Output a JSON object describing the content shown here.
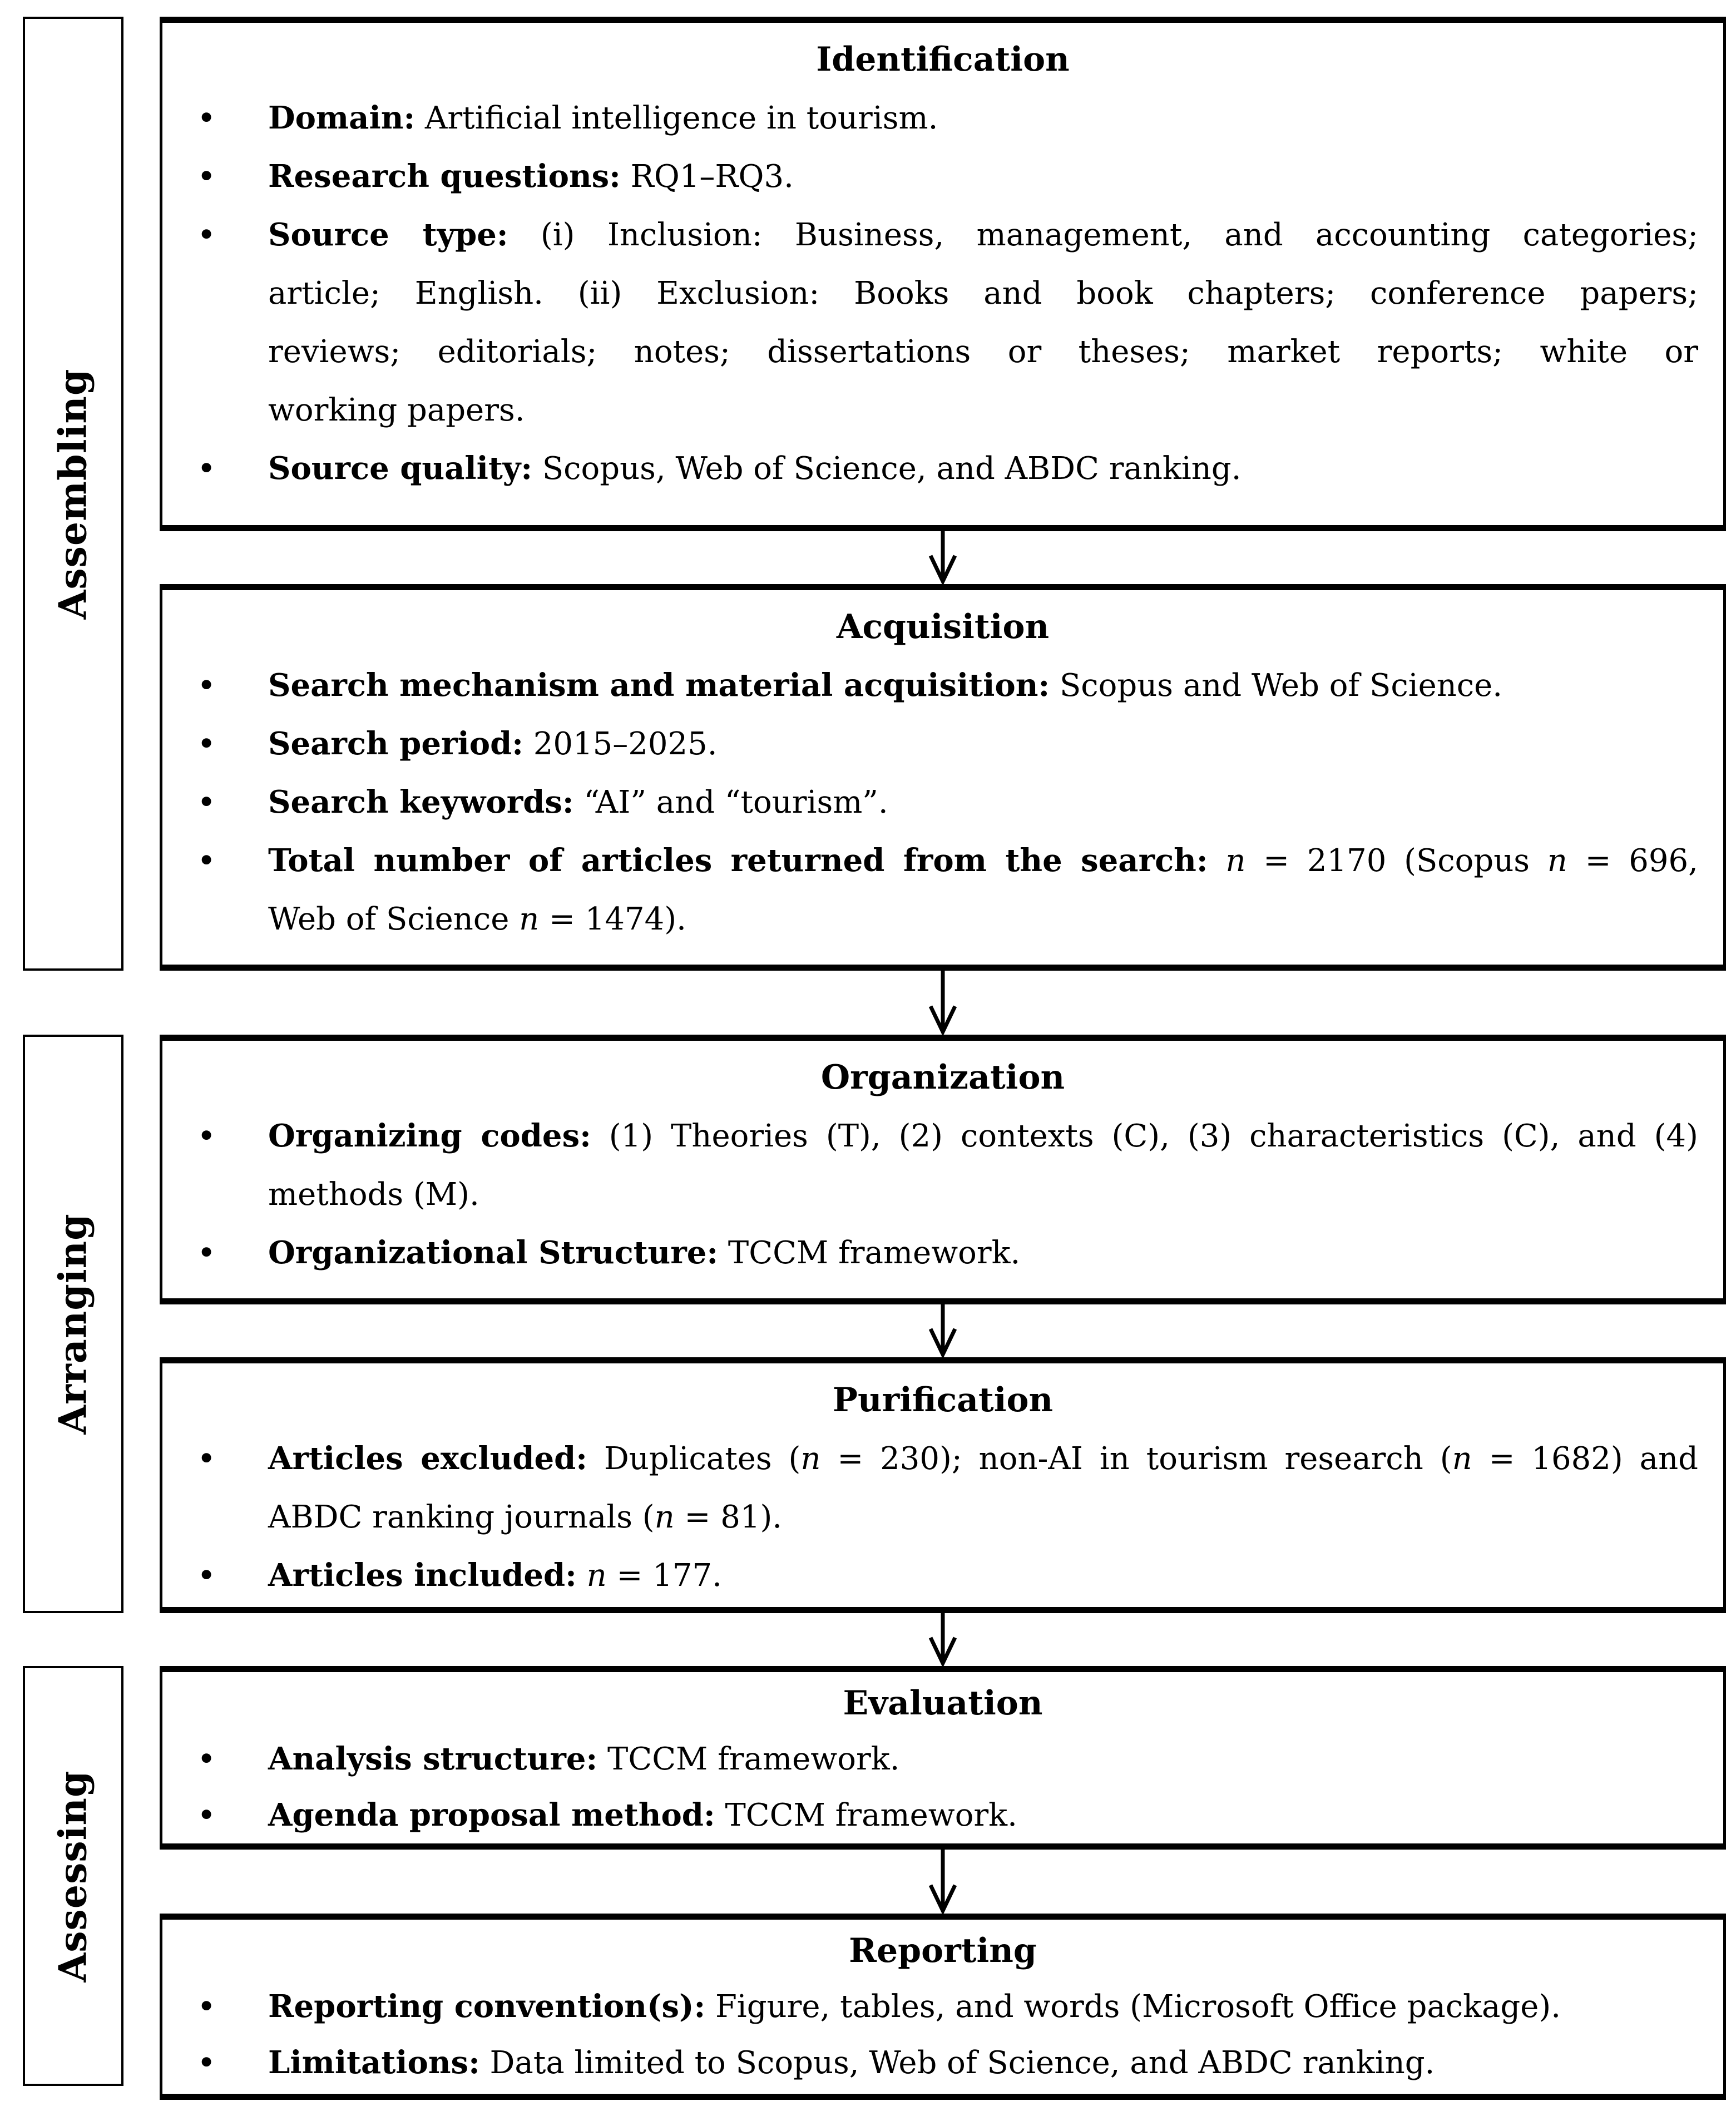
{
  "colors": {
    "ink": "#000000",
    "background": "#ffffff"
  },
  "glyphs": {
    "bullet": "•"
  },
  "stages": {
    "assembling": {
      "label": "Assembling"
    },
    "arranging": {
      "label": "Arranging"
    },
    "assessing": {
      "label": "Assessing"
    }
  },
  "boxes": {
    "identification": {
      "title": "Identification",
      "bullets": [
        {
          "lines": [
            {
              "runs": [
                {
                  "t": "Domain:",
                  "b": 1
                },
                {
                  "t": " Artificial intelligence in tourism."
                }
              ]
            }
          ]
        },
        {
          "lines": [
            {
              "runs": [
                {
                  "t": "Research questions:",
                  "b": 1
                },
                {
                  "t": " RQ1–RQ3."
                }
              ]
            }
          ]
        },
        {
          "lines": [
            {
              "runs": [
                {
                  "t": "Source type:",
                  "b": 1
                },
                {
                  "t": " (i) Inclusion: Business, management, and accounting categories;"
                }
              ]
            },
            {
              "runs": [
                {
                  "t": "article; English. (ii) Exclusion: Books and book chapters; conference papers;"
                }
              ]
            },
            {
              "runs": [
                {
                  "t": "reviews; editorials; notes; dissertations or theses; market reports; white or"
                }
              ]
            },
            {
              "runs": [
                {
                  "t": "working papers."
                }
              ]
            }
          ]
        },
        {
          "lines": [
            {
              "runs": [
                {
                  "t": "Source quality:",
                  "b": 1
                },
                {
                  "t": " Scopus, Web of Science, and ABDC ranking."
                }
              ]
            }
          ]
        }
      ]
    },
    "acquisition": {
      "title": "Acquisition",
      "bullets": [
        {
          "lines": [
            {
              "runs": [
                {
                  "t": "Search mechanism and material acquisition:",
                  "b": 1
                },
                {
                  "t": " Scopus and Web of Science."
                }
              ]
            }
          ]
        },
        {
          "lines": [
            {
              "runs": [
                {
                  "t": "Search period:",
                  "b": 1
                },
                {
                  "t": " 2015–2025."
                }
              ]
            }
          ]
        },
        {
          "lines": [
            {
              "runs": [
                {
                  "t": "Search keywords:",
                  "b": 1
                },
                {
                  "t": " “AI” and “tourism”."
                }
              ]
            }
          ]
        },
        {
          "lines": [
            {
              "runs": [
                {
                  "t": "Total number of articles returned from the search:",
                  "b": 1
                },
                {
                  "t": " "
                },
                {
                  "t": "n",
                  "i": 1
                },
                {
                  "t": " = 2170 (Scopus "
                },
                {
                  "t": "n",
                  "i": 1
                },
                {
                  "t": " = 696,"
                }
              ]
            },
            {
              "runs": [
                {
                  "t": "Web of Science "
                },
                {
                  "t": "n",
                  "i": 1
                },
                {
                  "t": " = 1474)."
                }
              ]
            }
          ]
        }
      ]
    },
    "organization": {
      "title": "Organization",
      "bullets": [
        {
          "lines": [
            {
              "runs": [
                {
                  "t": "Organizing codes:",
                  "b": 1
                },
                {
                  "t": " (1) Theories (T), (2) contexts (C), (3) characteristics (C), and (4)"
                }
              ]
            },
            {
              "runs": [
                {
                  "t": "methods (M)."
                }
              ]
            }
          ]
        },
        {
          "lines": [
            {
              "runs": [
                {
                  "t": "Organizational Structure:",
                  "b": 1
                },
                {
                  "t": " TCCM framework."
                }
              ]
            }
          ]
        }
      ]
    },
    "purification": {
      "title": "Purification",
      "bullets": [
        {
          "lines": [
            {
              "runs": [
                {
                  "t": "Articles excluded:",
                  "b": 1
                },
                {
                  "t": " Duplicates ("
                },
                {
                  "t": "n",
                  "i": 1
                },
                {
                  "t": " = 230); non-AI in tourism research ("
                },
                {
                  "t": "n",
                  "i": 1
                },
                {
                  "t": " = 1682) and"
                }
              ]
            },
            {
              "runs": [
                {
                  "t": "ABDC ranking journals ("
                },
                {
                  "t": "n",
                  "i": 1
                },
                {
                  "t": " = 81)."
                }
              ]
            }
          ]
        },
        {
          "lines": [
            {
              "runs": [
                {
                  "t": "Articles included:",
                  "b": 1
                },
                {
                  "t": " "
                },
                {
                  "t": "n",
                  "i": 1
                },
                {
                  "t": " = 177."
                }
              ]
            }
          ]
        }
      ]
    },
    "evaluation": {
      "title": "Evaluation",
      "bullets": [
        {
          "lines": [
            {
              "runs": [
                {
                  "t": "Analysis structure:",
                  "b": 1
                },
                {
                  "t": " TCCM framework."
                }
              ]
            }
          ]
        },
        {
          "lines": [
            {
              "runs": [
                {
                  "t": "Agenda proposal method:",
                  "b": 1
                },
                {
                  "t": " TCCM framework."
                }
              ]
            }
          ]
        }
      ]
    },
    "reporting": {
      "title": "Reporting",
      "bullets": [
        {
          "lines": [
            {
              "runs": [
                {
                  "t": "Reporting convention(s):",
                  "b": 1
                },
                {
                  "t": " Figure, tables, and words (Microsoft Office package)."
                }
              ]
            }
          ]
        },
        {
          "lines": [
            {
              "runs": [
                {
                  "t": "Limitations:",
                  "b": 1
                },
                {
                  "t": " Data limited to Scopus, Web of Science, and ABDC ranking."
                }
              ]
            }
          ]
        }
      ]
    }
  }
}
